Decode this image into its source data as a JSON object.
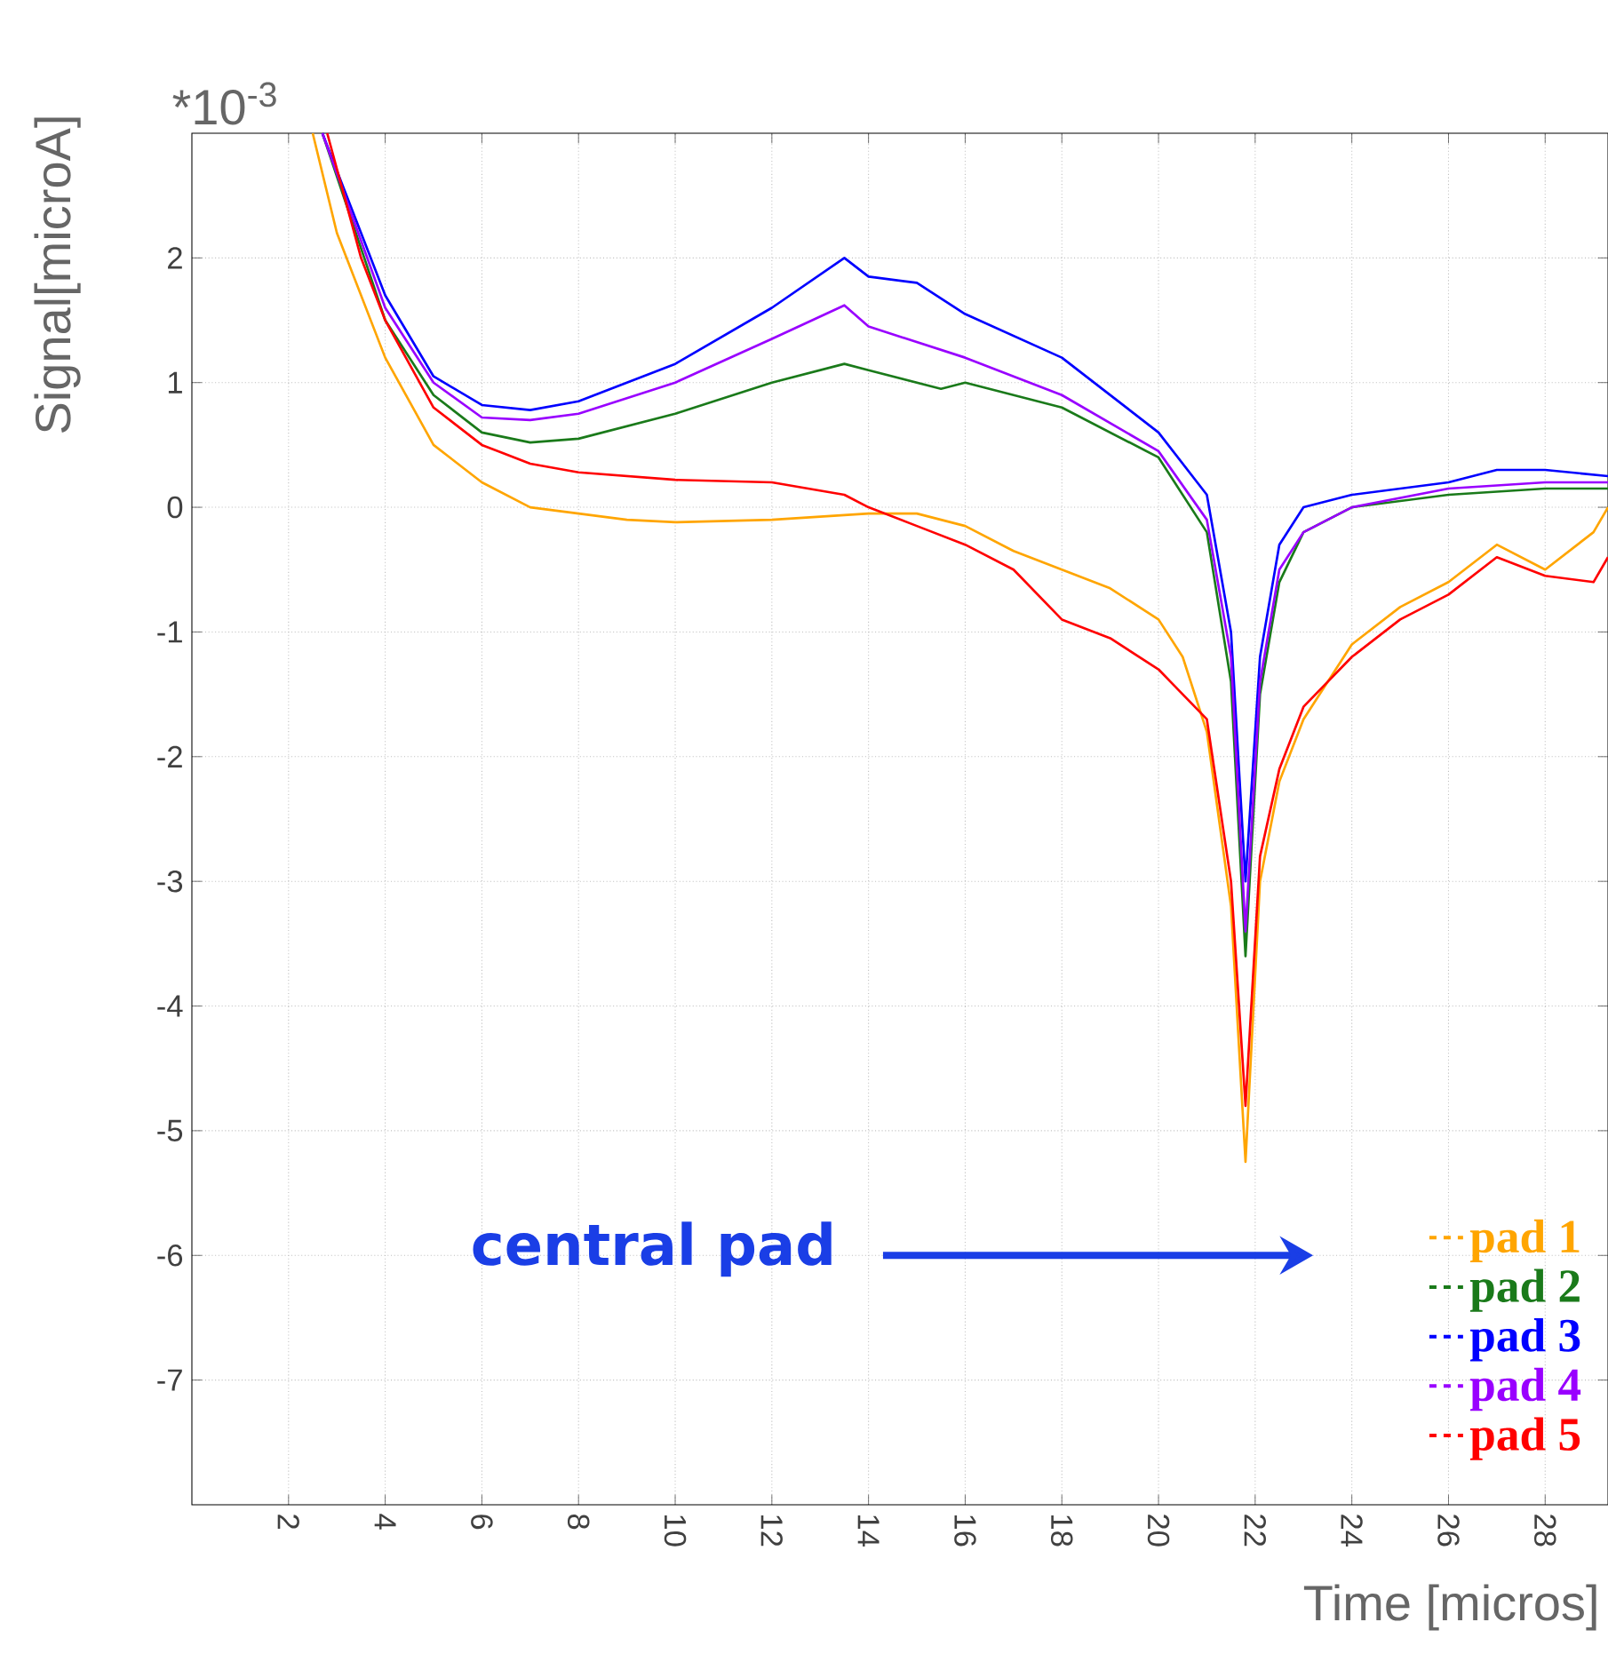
{
  "chart_data": {
    "type": "line",
    "xlabel": "Time [micros]",
    "ylabel": "Signal[microA]",
    "annotations": [
      "*10$^{-3}$",
      "central pad"
    ],
    "xlim": [
      0,
      29.3
    ],
    "ylim": [
      -8,
      3
    ],
    "xticks": [
      2,
      4,
      6,
      8,
      10,
      12,
      14,
      16,
      18,
      20,
      22,
      24,
      26,
      28
    ],
    "yticks": [
      -7,
      -6,
      -5,
      -4,
      -3,
      -2,
      -1,
      0,
      1,
      2
    ],
    "grid": true,
    "legend": "bottom right",
    "line_style": "solid",
    "marker": "none",
    "series": [
      {
        "name": "pad 1",
        "color": "#ffa500",
        "x": [
          2.5,
          3,
          4,
          5,
          6,
          7,
          8,
          9,
          10,
          12,
          14,
          15,
          16,
          17,
          18,
          19,
          20,
          20.5,
          21,
          21.5,
          21.8,
          22.1,
          22.5,
          23,
          24,
          25,
          26,
          27,
          28,
          29,
          29.3
        ],
        "values": [
          3,
          2.2,
          1.2,
          0.5,
          0.2,
          0,
          -0.05,
          -0.1,
          -0.12,
          -0.1,
          -0.05,
          -0.05,
          -0.15,
          -0.35,
          -0.5,
          -0.65,
          -0.9,
          -1.2,
          -1.8,
          -3.2,
          -5.25,
          -3,
          -2.2,
          -1.7,
          -1.1,
          -0.8,
          -0.6,
          -0.3,
          -0.5,
          -0.2,
          0
        ]
      },
      {
        "name": "pad 2",
        "color": "#1a7a1a",
        "x": [
          2.7,
          4,
          5,
          6,
          7,
          8,
          10,
          12,
          13.5,
          14,
          15.5,
          16,
          18,
          20,
          21,
          21.5,
          21.8,
          22.1,
          22.5,
          23,
          24,
          26,
          28,
          29.3
        ],
        "values": [
          3,
          1.5,
          0.9,
          0.6,
          0.52,
          0.55,
          0.75,
          1,
          1.15,
          1.1,
          0.95,
          1,
          0.8,
          0.4,
          -0.2,
          -1.4,
          -3.6,
          -1.5,
          -0.6,
          -0.2,
          0,
          0.1,
          0.15,
          0.15
        ]
      },
      {
        "name": "pad 3",
        "color": "#0000ff",
        "x": [
          2.7,
          3.5,
          4,
          5,
          6,
          7,
          8,
          10,
          12,
          13.5,
          14,
          15,
          16,
          18,
          20,
          21,
          21.5,
          21.8,
          22.1,
          22.5,
          23,
          24,
          26,
          27,
          28,
          29.3
        ],
        "values": [
          3,
          2.2,
          1.7,
          1.05,
          0.82,
          0.78,
          0.85,
          1.15,
          1.6,
          2,
          1.85,
          1.8,
          1.55,
          1.2,
          0.6,
          0.1,
          -1,
          -3,
          -1.2,
          -0.3,
          0,
          0.1,
          0.2,
          0.3,
          0.3,
          0.25
        ]
      },
      {
        "name": "pad 4",
        "color": "#9900ff",
        "x": [
          2.7,
          4,
          5,
          6,
          7,
          8,
          10,
          12,
          13.5,
          14,
          16,
          18,
          20,
          21,
          21.5,
          21.8,
          22.1,
          22.5,
          23,
          24,
          26,
          28,
          29.3
        ],
        "values": [
          3,
          1.6,
          1,
          0.72,
          0.7,
          0.75,
          1,
          1.35,
          1.62,
          1.45,
          1.2,
          0.9,
          0.45,
          -0.1,
          -1.2,
          -3.4,
          -1.4,
          -0.5,
          -0.2,
          0,
          0.15,
          0.2,
          0.2
        ]
      },
      {
        "name": "pad 5",
        "color": "#ff0000",
        "x": [
          2.8,
          3.5,
          4,
          5,
          6,
          7,
          8,
          10,
          12,
          13.5,
          14,
          15,
          16,
          17,
          18,
          19,
          20,
          20.5,
          21,
          21.5,
          21.8,
          22.1,
          22.5,
          23,
          24,
          25,
          26,
          27,
          28,
          29,
          29.3
        ],
        "values": [
          3,
          2,
          1.5,
          0.8,
          0.5,
          0.35,
          0.28,
          0.22,
          0.2,
          0.1,
          0,
          -0.15,
          -0.3,
          -0.5,
          -0.9,
          -1.05,
          -1.3,
          -1.5,
          -1.7,
          -3,
          -4.8,
          -2.8,
          -2.1,
          -1.6,
          -1.2,
          -0.9,
          -0.7,
          -0.4,
          -0.55,
          -0.6,
          -0.4
        ]
      }
    ]
  }
}
